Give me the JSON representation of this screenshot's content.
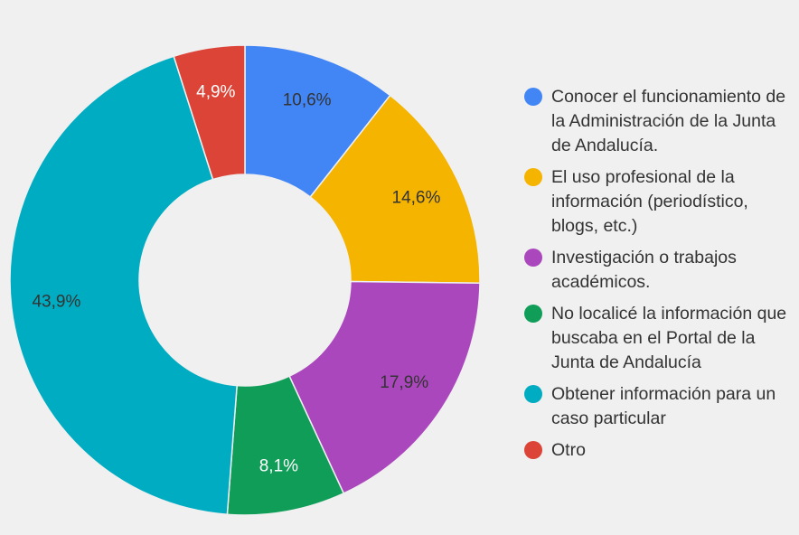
{
  "chart_data": {
    "type": "donut",
    "categories": [
      "Conocer el funcionamiento de la Administración de la Junta de Andalucía.",
      "El uso profesional de la información (periodístico, blogs, etc.)",
      "Investigación o trabajos académicos.",
      "No localicé la información que buscaba en el Portal de la Junta de Andalucía",
      "Obtener información para un caso particular",
      "Otro"
    ],
    "values": [
      10.6,
      14.6,
      17.9,
      8.1,
      43.9,
      4.9
    ],
    "value_labels": [
      "10,6%",
      "14,6%",
      "17,9%",
      "8,1%",
      "43,9%",
      "4,9%"
    ],
    "colors": [
      "#4285f4",
      "#f4b400",
      "#ab47bc",
      "#0f9d58",
      "#00acc1",
      "#db4437"
    ],
    "legend": "right"
  }
}
